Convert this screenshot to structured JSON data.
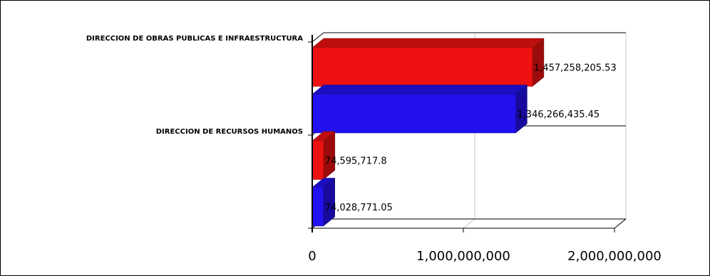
{
  "chart_data": {
    "type": "bar",
    "orientation": "horizontal",
    "style": "3d",
    "categories": [
      "DIRECCION DE OBRAS PUBLICAS E INFRAESTRUCTURA",
      "DIRECCION DE RECURSOS HUMANOS"
    ],
    "series": [
      {
        "color": "#ee1111",
        "values": [
          1457258205.53,
          74595717.8
        ],
        "labels": [
          "1,457,258,205.53",
          "74,595,717.8"
        ]
      },
      {
        "color": "#2211ee",
        "values": [
          1346266435.45,
          74028771.05
        ],
        "labels": [
          "1,346,266,435.45",
          "74,028,771.05"
        ]
      }
    ],
    "xlim": [
      0,
      2000000000
    ],
    "xticks": [
      {
        "value": 0,
        "label": "0"
      },
      {
        "value": 1000000000,
        "label": "1,000,000,000"
      },
      {
        "value": 2000000000,
        "label": "2,000,000,000"
      }
    ],
    "grid": true,
    "legend": "none",
    "title": "",
    "xlabel": "",
    "ylabel": ""
  }
}
